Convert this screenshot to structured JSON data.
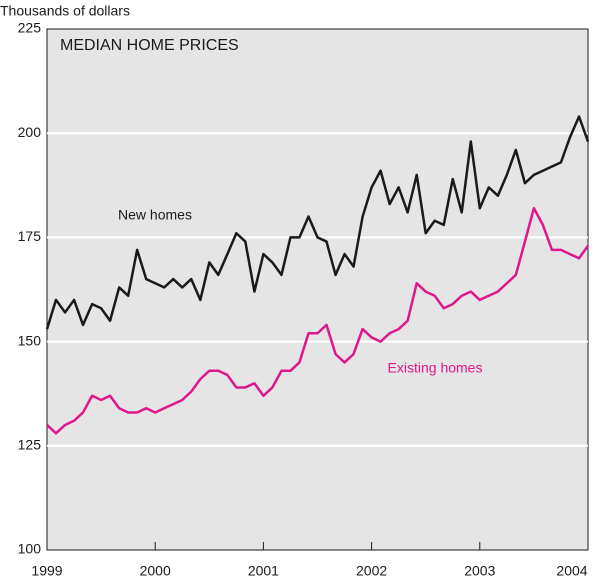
{
  "chart_data": {
    "type": "line",
    "title": "MEDIAN HOME PRICES",
    "y_label": "Thousands of dollars",
    "x": [
      1999,
      1999.083,
      1999.167,
      1999.25,
      1999.333,
      1999.417,
      1999.5,
      1999.583,
      1999.667,
      1999.75,
      1999.833,
      1999.917,
      2000,
      2000.083,
      2000.167,
      2000.25,
      2000.333,
      2000.417,
      2000.5,
      2000.583,
      2000.667,
      2000.75,
      2000.833,
      2000.917,
      2001,
      2001.083,
      2001.167,
      2001.25,
      2001.333,
      2001.417,
      2001.5,
      2001.583,
      2001.667,
      2001.75,
      2001.833,
      2001.917,
      2002,
      2002.083,
      2002.167,
      2002.25,
      2002.333,
      2002.417,
      2002.5,
      2002.583,
      2002.667,
      2002.75,
      2002.833,
      2002.917,
      2003,
      2003.083,
      2003.167,
      2003.25,
      2003.333,
      2003.417,
      2003.5,
      2003.583,
      2003.667,
      2003.75,
      2003.833,
      2003.917,
      2004
    ],
    "series": [
      {
        "name": "New homes",
        "color": "#1a1a1a",
        "values": [
          153,
          160,
          157,
          160,
          154,
          159,
          158,
          155,
          163,
          161,
          172,
          165,
          164,
          163,
          165,
          163,
          165,
          160,
          169,
          166,
          171,
          176,
          174,
          162,
          171,
          169,
          166,
          175,
          175,
          180,
          175,
          174,
          166,
          171,
          168,
          180,
          187,
          191,
          183,
          187,
          181,
          190,
          176,
          179,
          178,
          189,
          181,
          198,
          182,
          187,
          185,
          190,
          196,
          188,
          190,
          191,
          192,
          193,
          199,
          204,
          198
        ]
      },
      {
        "name": "Existing homes",
        "color": "#e0168c",
        "values": [
          130,
          128,
          130,
          131,
          133,
          137,
          136,
          137,
          134,
          133,
          133,
          134,
          133,
          134,
          135,
          136,
          138,
          141,
          143,
          143,
          142,
          139,
          139,
          140,
          137,
          139,
          143,
          143,
          145,
          152,
          152,
          154,
          147,
          145,
          147,
          153,
          151,
          150,
          152,
          153,
          155,
          164,
          162,
          161,
          158,
          159,
          161,
          162,
          160,
          161,
          162,
          164,
          166,
          174,
          182,
          178,
          172,
          172,
          171,
          170,
          173
        ]
      }
    ],
    "xlim": [
      1999,
      2004
    ],
    "xticks": [
      1999,
      2000,
      2001,
      2002,
      2003,
      2004
    ],
    "ylim": [
      100,
      225
    ],
    "yticks": [
      100,
      125,
      150,
      175,
      200,
      225
    ],
    "grid": true
  }
}
